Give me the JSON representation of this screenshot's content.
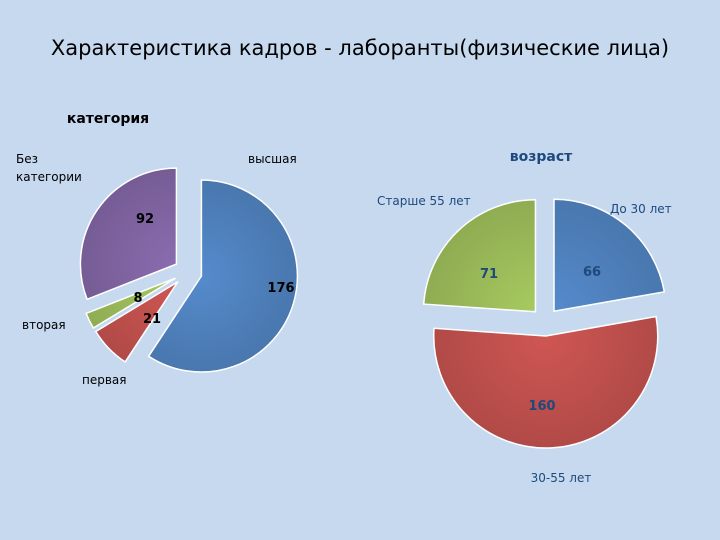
{
  "slide": {
    "title": "Характеристика кадров - лаборанты(физические лица)"
  },
  "chart_data": [
    {
      "type": "pie",
      "title": "категория",
      "labels": [
        "высшая",
        "первая",
        "вторая",
        "Без категории"
      ],
      "values": [
        176,
        21,
        8,
        92
      ],
      "value_labels": [
        "176",
        "21",
        "8",
        "92"
      ],
      "colors": [
        "#4f81bd",
        "#c0504d",
        "#9bbb59",
        "#8064a2"
      ],
      "exploded": true,
      "title_color": "#000000",
      "label_color": "#000000",
      "value_color": "#000000"
    },
    {
      "type": "pie",
      "title": "возраст",
      "labels": [
        "До 30 лет",
        "30-55 лет",
        "Старше 55 лет"
      ],
      "values": [
        66,
        160,
        71
      ],
      "value_labels": [
        "66",
        "160",
        "71"
      ],
      "colors": [
        "#4f81bd",
        "#c0504d",
        "#9bbb59"
      ],
      "exploded": true,
      "title_color": "#1f497d",
      "label_color": "#1f497d",
      "value_color": "#1f497d"
    }
  ]
}
